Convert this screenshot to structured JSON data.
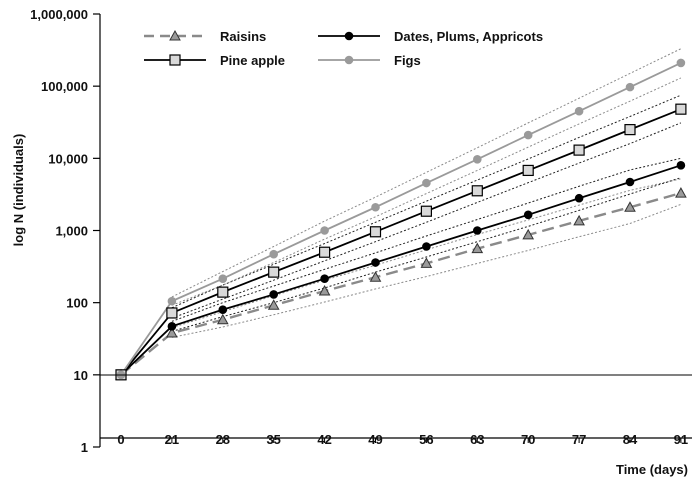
{
  "chart_data": {
    "type": "line",
    "xlabel": "Time (days)",
    "ylabel": "log N (individuals)",
    "x": [
      0,
      21,
      28,
      35,
      42,
      49,
      56,
      63,
      70,
      77,
      84,
      91
    ],
    "x_tick_labels": [
      "0",
      "21",
      "28",
      "35",
      "42",
      "49",
      "56",
      "63",
      "70",
      "77",
      "84",
      "91"
    ],
    "y_scale": "log",
    "ylim": [
      1,
      1000000
    ],
    "y_ticks": [
      1,
      10,
      100,
      1000,
      10000,
      100000,
      1000000
    ],
    "y_tick_labels": [
      "1",
      "10",
      "100",
      "1,000",
      "10,000",
      "100,000",
      "1,000,000"
    ],
    "grid": false,
    "legend_position": "top",
    "series": [
      {
        "name": "Raisins",
        "marker": "triangle",
        "line_style": "dashed",
        "color": "#8a8a8a",
        "values": [
          10,
          38,
          58,
          92,
          145,
          225,
          350,
          560,
          870,
          1360,
          2100,
          3300
        ],
        "ci_upper": [
          10,
          45,
          75,
          125,
          205,
          330,
          540,
          880,
          1400,
          2250,
          3600,
          5200
        ],
        "ci_lower": [
          10,
          33,
          46,
          68,
          102,
          155,
          230,
          350,
          530,
          820,
          1250,
          2300
        ]
      },
      {
        "name": "Dates, Plums, Appricots",
        "marker": "circle",
        "line_style": "solid",
        "color": "#000000",
        "values": [
          10,
          47,
          80,
          130,
          215,
          360,
          600,
          1000,
          1650,
          2800,
          4700,
          8000
        ],
        "ci_upper": [
          10,
          55,
          100,
          170,
          290,
          490,
          840,
          1420,
          2400,
          4100,
          6900,
          10000
        ],
        "ci_lower": [
          10,
          40,
          64,
          100,
          160,
          265,
          430,
          700,
          1140,
          1900,
          3200,
          5400
        ]
      },
      {
        "name": "Pine apple",
        "marker": "square",
        "line_style": "solid",
        "color": "#000000",
        "values": [
          10,
          72,
          140,
          265,
          500,
          960,
          1850,
          3550,
          6800,
          13000,
          25000,
          48000
        ],
        "ci_upper": [
          10,
          85,
          175,
          340,
          660,
          1300,
          2550,
          5000,
          9800,
          19500,
          38000,
          75000
        ],
        "ci_lower": [
          10,
          61,
          112,
          205,
          380,
          700,
          1300,
          2450,
          4600,
          8600,
          16000,
          31000
        ]
      },
      {
        "name": "Figs",
        "marker": "circle",
        "line_style": "solid",
        "color": "#9a9a9a",
        "values": [
          10,
          105,
          215,
          470,
          1000,
          2100,
          4550,
          9700,
          21000,
          45000,
          97000,
          210000
        ],
        "ci_upper": [
          10,
          120,
          270,
          600,
          1350,
          2900,
          6400,
          14000,
          31000,
          68000,
          150000,
          330000
        ],
        "ci_lower": [
          10,
          92,
          175,
          360,
          760,
          1550,
          3250,
          6800,
          14300,
          30000,
          62000,
          130000
        ]
      }
    ]
  }
}
